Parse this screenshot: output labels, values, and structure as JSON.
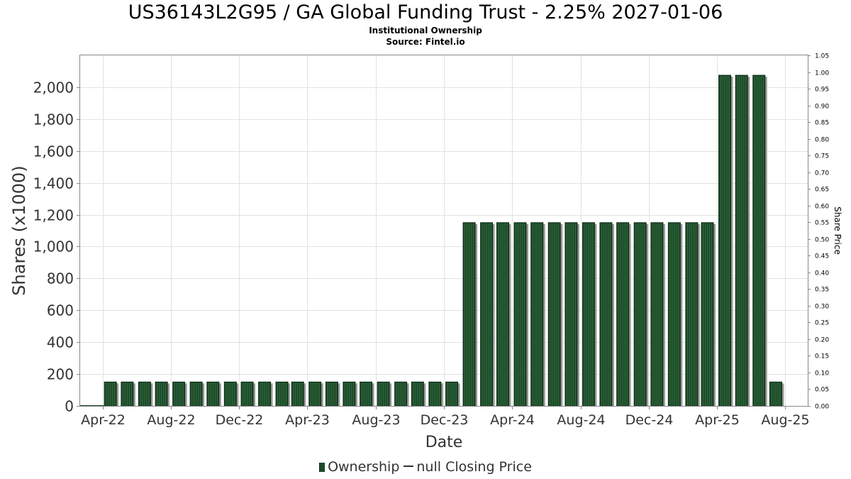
{
  "chart_data": {
    "type": "bar",
    "title": "US36143L2G95 / GA Global Funding Trust - 2.25% 2027-01-06",
    "subtitle_lines": [
      "Institutional Ownership",
      "Source: Fintel.io"
    ],
    "xlabel": "Date",
    "ylabel": "Shares (x1000)",
    "y2label": "Share Price",
    "x_tick_labels": [
      "Apr-22",
      "Aug-22",
      "Dec-22",
      "Apr-23",
      "Aug-23",
      "Dec-23",
      "Apr-24",
      "Aug-24",
      "Dec-24",
      "Apr-25",
      "Aug-25"
    ],
    "x_tick_dates": [
      "2022-04-01",
      "2022-08-01",
      "2022-12-01",
      "2023-04-01",
      "2023-08-01",
      "2023-12-01",
      "2024-04-01",
      "2024-08-01",
      "2024-12-01",
      "2025-04-01",
      "2025-08-01"
    ],
    "xlim": [
      "2022-02-20",
      "2025-09-10"
    ],
    "ylim": [
      0,
      2200
    ],
    "y_ticks": [
      0,
      200,
      400,
      600,
      800,
      1000,
      1200,
      1400,
      1600,
      1800,
      2000
    ],
    "y2lim": [
      0,
      1.05
    ],
    "y2_ticks": [
      0.0,
      0.05,
      0.1,
      0.15,
      0.2,
      0.25,
      0.3,
      0.35,
      0.4,
      0.45,
      0.5,
      0.55,
      0.6,
      0.65,
      0.7,
      0.75,
      0.8,
      0.85,
      0.9,
      0.95,
      1.0,
      1.05
    ],
    "grid": true,
    "series": [
      {
        "name": "Ownership",
        "color": "#1e4a2a",
        "dates": [
          "2022-04-15",
          "2022-05-15",
          "2022-06-15",
          "2022-07-15",
          "2022-08-15",
          "2022-09-15",
          "2022-10-15",
          "2022-11-15",
          "2022-12-15",
          "2023-01-15",
          "2023-02-15",
          "2023-03-15",
          "2023-04-15",
          "2023-05-15",
          "2023-06-15",
          "2023-07-15",
          "2023-08-15",
          "2023-09-15",
          "2023-10-15",
          "2023-11-15",
          "2023-12-15",
          "2024-01-15",
          "2024-02-15",
          "2024-03-15",
          "2024-04-15",
          "2024-05-15",
          "2024-06-15",
          "2024-07-15",
          "2024-08-15",
          "2024-09-15",
          "2024-10-15",
          "2024-11-15",
          "2024-12-15",
          "2025-01-15",
          "2025-02-15",
          "2025-03-15",
          "2025-04-15",
          "2025-05-15",
          "2025-06-15",
          "2025-07-15"
        ],
        "values": [
          150,
          150,
          150,
          150,
          150,
          150,
          150,
          150,
          150,
          150,
          150,
          150,
          150,
          150,
          150,
          150,
          150,
          150,
          150,
          150,
          150,
          1150,
          1150,
          1150,
          1150,
          1150,
          1150,
          1150,
          1150,
          1150,
          1150,
          1150,
          1150,
          1150,
          1150,
          1150,
          2075,
          2075,
          2075,
          150
        ]
      },
      {
        "name": "null Closing Price",
        "color": "#333333",
        "values": []
      }
    ],
    "legend_position": "bottom-center"
  }
}
